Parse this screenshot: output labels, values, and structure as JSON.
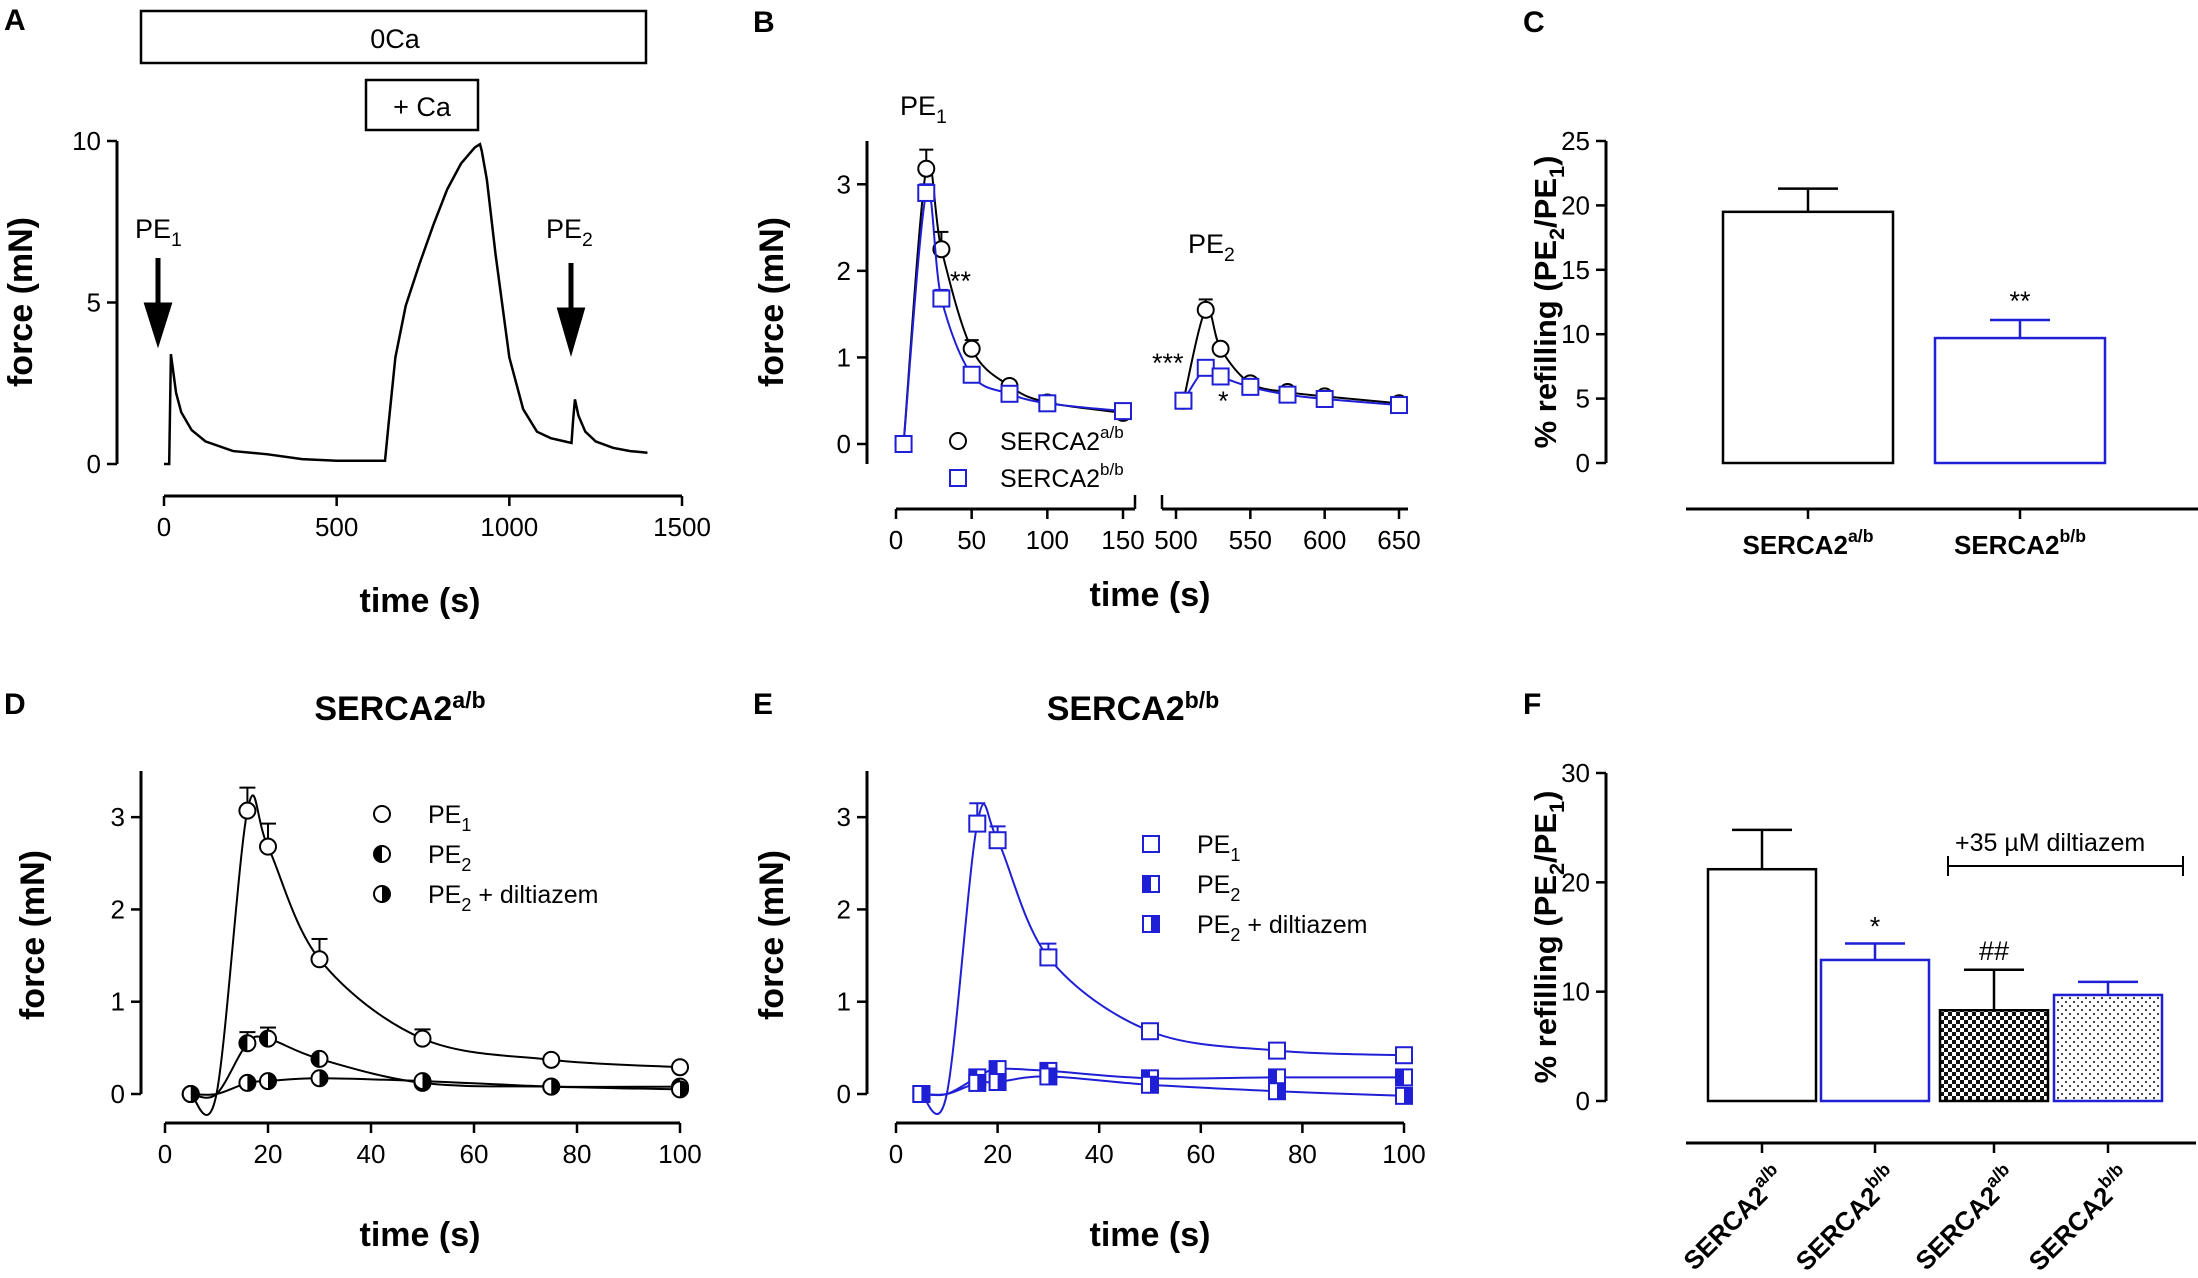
{
  "figure": {
    "panel_labels": [
      "A",
      "B",
      "C",
      "D",
      "E",
      "F"
    ]
  },
  "chart_data": [
    {
      "id": "A",
      "type": "line",
      "xlabel": "time (s)",
      "ylabel": "force (mN)",
      "xlim": [
        0,
        1500
      ],
      "ylim": [
        0,
        10
      ],
      "xticks": [
        0,
        500,
        1000,
        1500
      ],
      "yticks": [
        0,
        5,
        10
      ],
      "bars": [
        "0Ca",
        "+ Ca"
      ],
      "annotations": [
        "PE1",
        "PE2"
      ],
      "series": [
        {
          "name": "force trace",
          "color": "#000000",
          "x": [
            0,
            15,
            20,
            25,
            35,
            50,
            80,
            120,
            200,
            300,
            400,
            500,
            600,
            640,
            650,
            670,
            700,
            740,
            780,
            820,
            860,
            900,
            915,
            920,
            925,
            935,
            960,
            1000,
            1040,
            1080,
            1120,
            1160,
            1180,
            1185,
            1190,
            1200,
            1220,
            1250,
            1300,
            1350,
            1400
          ],
          "y": [
            0,
            0,
            3.4,
            3,
            2.2,
            1.6,
            1.05,
            0.7,
            0.4,
            0.3,
            0.15,
            0.1,
            0.1,
            0.1,
            1.2,
            3.3,
            4.9,
            6.2,
            7.4,
            8.5,
            9.3,
            9.8,
            9.9,
            9.7,
            9.4,
            8.8,
            6.5,
            3.3,
            1.7,
            1.0,
            0.8,
            0.7,
            0.65,
            1.4,
            2.0,
            1.5,
            1.0,
            0.7,
            0.5,
            0.4,
            0.35
          ]
        }
      ]
    },
    {
      "id": "B",
      "type": "line",
      "xlabel": "time (s)",
      "ylabel": "force (mN)",
      "ylim": [
        0,
        3.5
      ],
      "yticks": [
        0,
        1,
        2,
        3
      ],
      "xticks_left": [
        0,
        50,
        100,
        150
      ],
      "xticks_right": [
        500,
        550,
        600,
        650
      ],
      "annotations": [
        "PE1",
        "PE2",
        "**",
        "***",
        "*"
      ],
      "series": [
        {
          "name": "SERCA2a/b",
          "color": "#000000",
          "marker": "circle",
          "x": [
            5,
            20,
            30,
            50,
            75,
            100,
            150,
            505,
            520,
            530,
            550,
            575,
            600,
            650
          ],
          "y": [
            0,
            3.18,
            2.25,
            1.1,
            0.67,
            0.48,
            0.36,
            0.5,
            1.55,
            1.1,
            0.7,
            0.6,
            0.55,
            0.47
          ],
          "err": [
            0,
            0.22,
            0.2,
            0.1,
            0.05,
            0.04,
            0.03,
            0,
            0.12,
            0.05,
            0.03,
            0.03,
            0.02,
            0.02
          ]
        },
        {
          "name": "SERCA2b/b",
          "color": "#1f1fd6",
          "marker": "square",
          "x": [
            5,
            20,
            30,
            50,
            75,
            100,
            150,
            505,
            520,
            530,
            550,
            575,
            600,
            650
          ],
          "y": [
            0,
            2.9,
            1.68,
            0.8,
            0.58,
            0.47,
            0.38,
            0.5,
            0.88,
            0.78,
            0.66,
            0.57,
            0.52,
            0.45
          ],
          "err": [
            0,
            0.1,
            0.1,
            0.04,
            0.03,
            0.03,
            0.02,
            0,
            0.06,
            0.04,
            0.03,
            0.02,
            0.02,
            0.02
          ]
        }
      ]
    },
    {
      "id": "C",
      "type": "bar",
      "ylabel": "% refilling (PE2/PE1)",
      "ylim": [
        0,
        25
      ],
      "yticks": [
        0,
        5,
        10,
        15,
        20,
        25
      ],
      "categories": [
        "SERCA2a/b",
        "SERCA2b/b"
      ],
      "values": [
        19.5,
        9.7
      ],
      "errors": [
        1.8,
        1.4
      ],
      "colors": [
        "#000000",
        "#1f1fd6"
      ],
      "annotations": [
        "**"
      ]
    },
    {
      "id": "D",
      "type": "line",
      "title": "SERCA2a/b",
      "xlabel": "time (s)",
      "ylabel": "force (mN)",
      "xlim": [
        0,
        100
      ],
      "ylim": [
        0,
        3.5
      ],
      "xticks": [
        0,
        20,
        40,
        60,
        80,
        100
      ],
      "yticks": [
        0,
        1,
        2,
        3
      ],
      "series": [
        {
          "name": "PE1",
          "marker": "open-circle",
          "color": "#000000",
          "x": [
            5,
            16,
            20,
            30,
            50,
            75,
            100
          ],
          "y": [
            0,
            3.07,
            2.68,
            1.46,
            0.6,
            0.37,
            0.29
          ],
          "err": [
            0,
            0.25,
            0.25,
            0.22,
            0.1,
            0,
            0
          ]
        },
        {
          "name": "PE2",
          "marker": "half-circle-left",
          "color": "#000000",
          "x": [
            5,
            16,
            20,
            30,
            50,
            75,
            100
          ],
          "y": [
            0,
            0.55,
            0.6,
            0.38,
            0.12,
            0.08,
            0.08
          ],
          "err": [
            0,
            0.12,
            0.12,
            0,
            0,
            0,
            0
          ]
        },
        {
          "name": "PE2 + diltiazem",
          "marker": "half-circle-right",
          "color": "#000000",
          "x": [
            5,
            16,
            20,
            30,
            50,
            75,
            100
          ],
          "y": [
            0,
            0.12,
            0.14,
            0.17,
            0.14,
            0.08,
            0.05
          ],
          "err": [
            0,
            0,
            0,
            0,
            0,
            0,
            0
          ]
        }
      ]
    },
    {
      "id": "E",
      "type": "line",
      "title": "SERCA2b/b",
      "xlabel": "time (s)",
      "ylabel": "force (mN)",
      "xlim": [
        0,
        100
      ],
      "ylim": [
        0,
        3.5
      ],
      "xticks": [
        0,
        20,
        40,
        60,
        80,
        100
      ],
      "yticks": [
        0,
        1,
        2,
        3
      ],
      "series": [
        {
          "name": "PE1",
          "marker": "open-square",
          "color": "#1f1fd6",
          "x": [
            5,
            16,
            20,
            30,
            50,
            75,
            100
          ],
          "y": [
            0,
            2.93,
            2.75,
            1.48,
            0.68,
            0.47,
            0.42
          ],
          "err": [
            0,
            0.22,
            0.15,
            0.15,
            0.08,
            0,
            0
          ]
        },
        {
          "name": "PE2",
          "marker": "half-square-left",
          "color": "#1f1fd6",
          "x": [
            5,
            16,
            20,
            30,
            50,
            75,
            100
          ],
          "y": [
            0,
            0.18,
            0.27,
            0.25,
            0.17,
            0.18,
            0.18
          ],
          "err": [
            0,
            0,
            0,
            0,
            0,
            0,
            0
          ]
        },
        {
          "name": "PE2 + diltiazem",
          "marker": "half-square-right",
          "color": "#1f1fd6",
          "x": [
            5,
            16,
            20,
            30,
            50,
            75,
            100
          ],
          "y": [
            0,
            0.12,
            0.13,
            0.19,
            0.1,
            0.03,
            -0.02
          ],
          "err": [
            0,
            0,
            0,
            0,
            0,
            0,
            0
          ]
        }
      ]
    },
    {
      "id": "F",
      "type": "bar",
      "ylabel": "% refilling (PE2/PE1)",
      "ylim": [
        0,
        30
      ],
      "yticks": [
        0,
        10,
        20,
        30
      ],
      "categories": [
        "SERCA2a/b",
        "SERCA2b/b",
        "SERCA2a/b",
        "SERCA2b/b"
      ],
      "values": [
        21.2,
        12.9,
        8.3,
        9.7
      ],
      "errors": [
        3.6,
        1.5,
        3.7,
        1.2
      ],
      "fills": [
        "white",
        "white",
        "checkered",
        "dotted"
      ],
      "colors": [
        "#000000",
        "#1f1fd6",
        "#000000",
        "#1f1fd6"
      ],
      "annotations": [
        "*",
        "##",
        "+35 µM diltiazem"
      ]
    }
  ]
}
